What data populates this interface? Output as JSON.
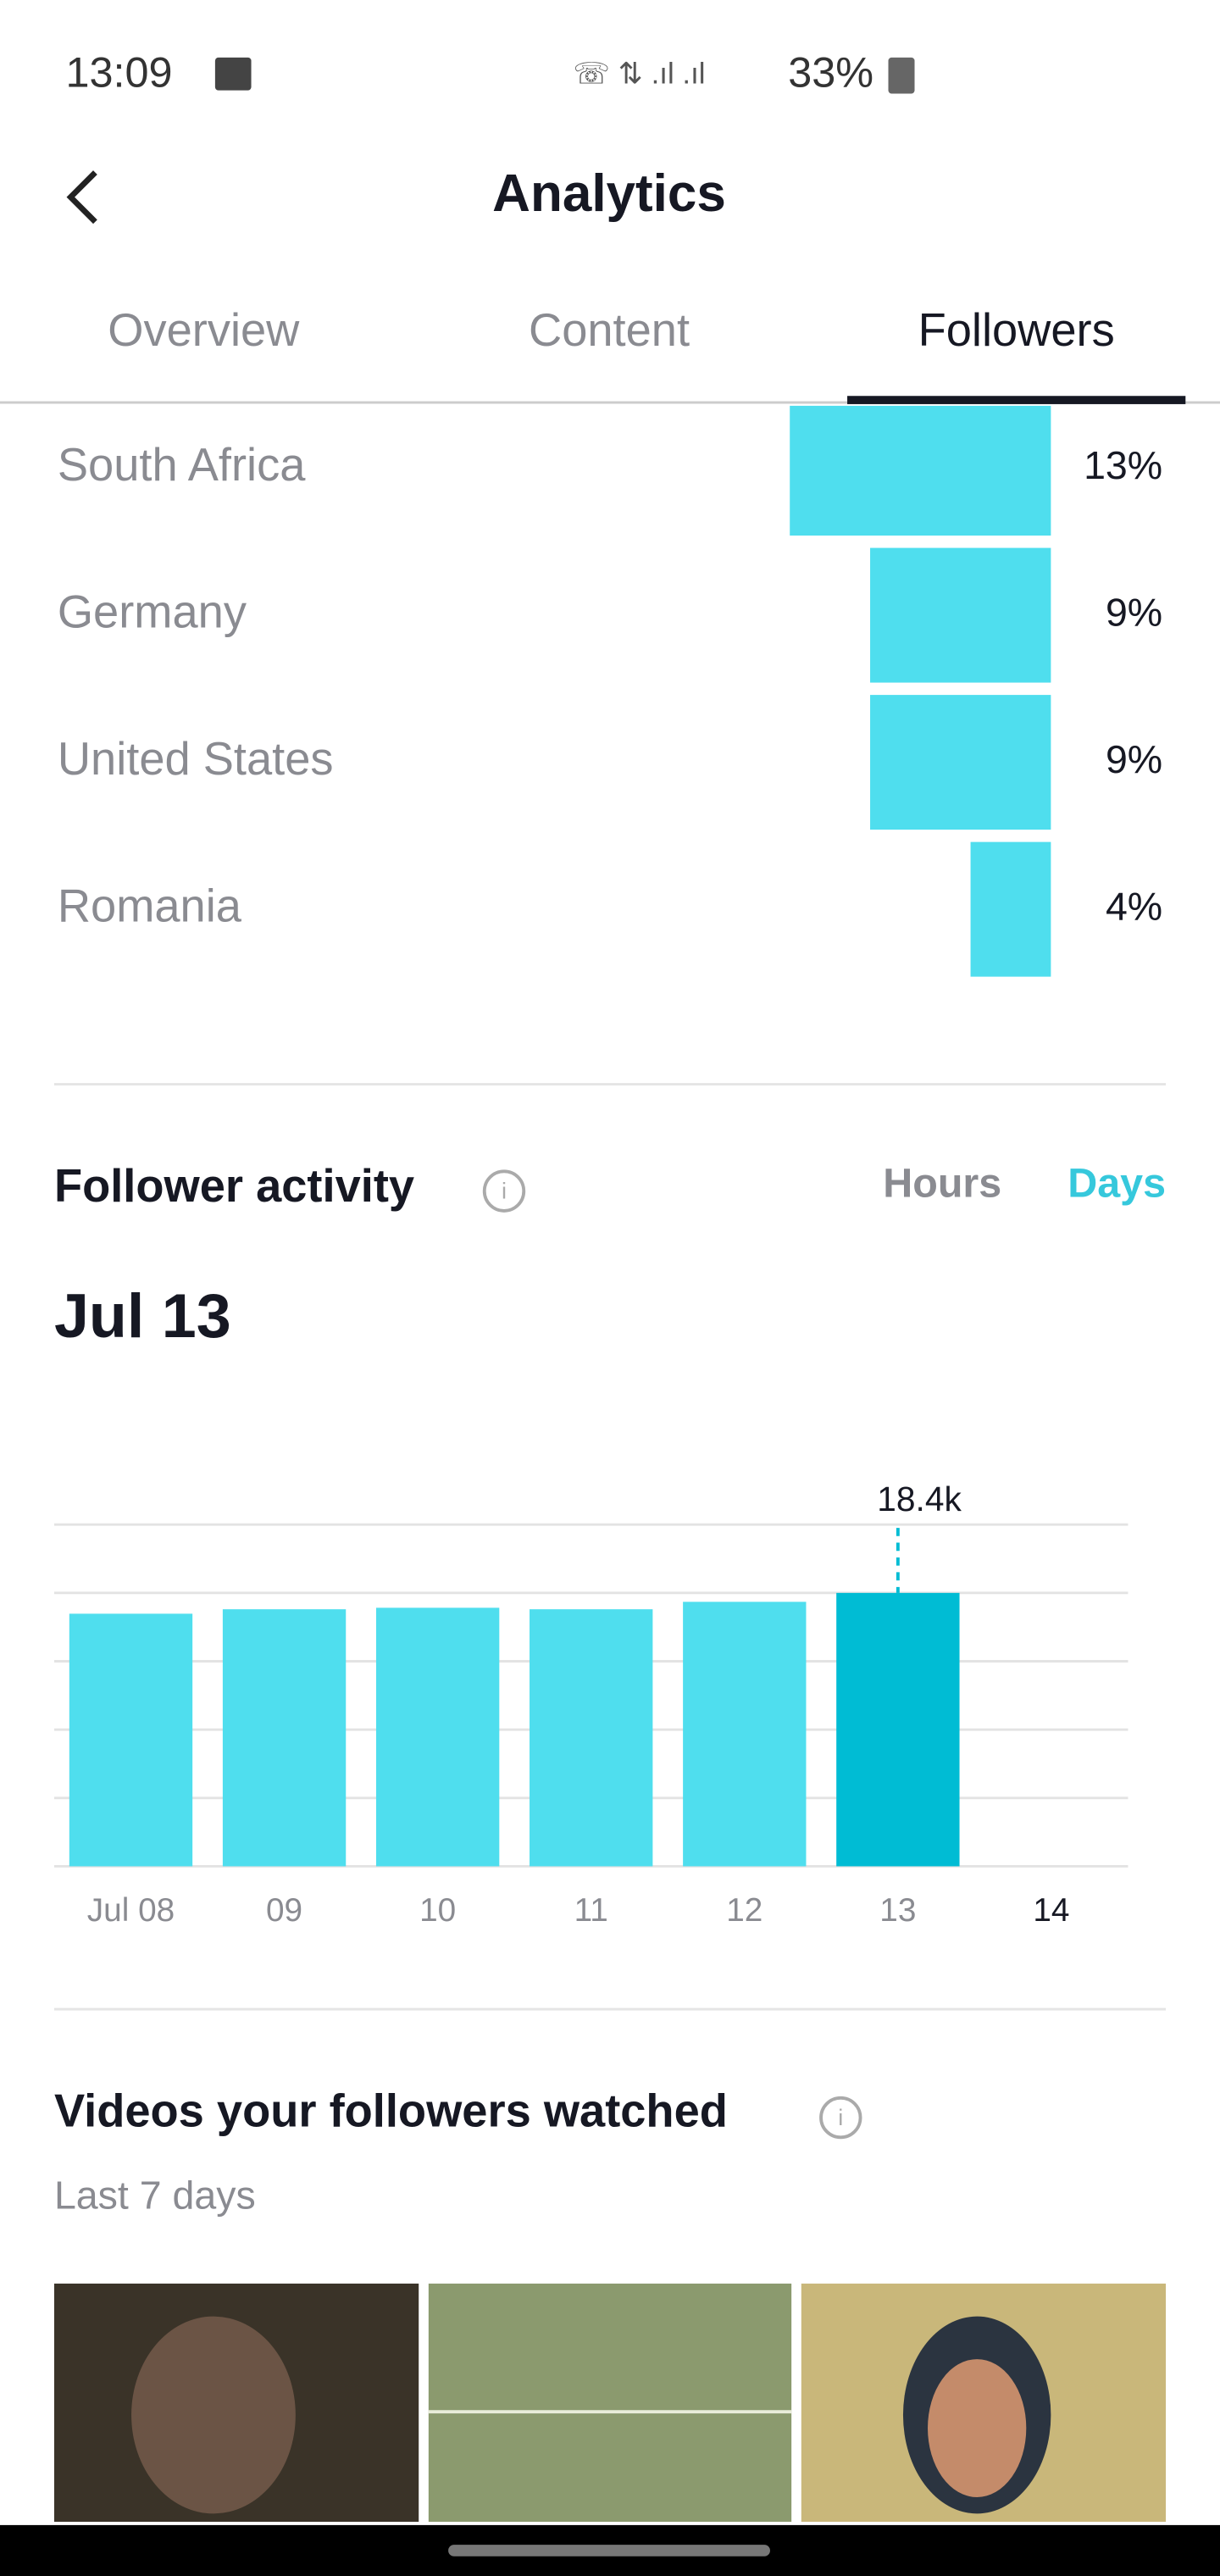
{
  "status_bar": {
    "time": "13:09",
    "battery": "33%"
  },
  "header": {
    "title": "Analytics"
  },
  "tabs": [
    "Overview",
    "Content",
    "Followers"
  ],
  "follower_activity": {
    "title": "Follower activity",
    "toggles": [
      "Hours",
      "Days"
    ],
    "selected_date": "Jul 13"
  },
  "videos": {
    "title": "Videos your followers watched",
    "subtitle": "Last 7 days"
  },
  "chart_data": [
    {
      "type": "hbar",
      "categories": [
        "South Africa",
        "Germany",
        "United States",
        "Romania"
      ],
      "values": [
        13,
        9,
        9,
        4
      ],
      "value_labels": [
        "13%",
        "9%",
        "9%",
        "4%"
      ],
      "color": "#4fdeee"
    },
    {
      "type": "bar",
      "categories": [
        "Jul 08",
        "09",
        "10",
        "11",
        "12",
        "13",
        "14"
      ],
      "values": [
        17.0,
        17.3,
        17.4,
        17.3,
        17.8,
        18.4,
        null
      ],
      "value_labels": [
        null,
        null,
        null,
        null,
        null,
        "18.4k",
        null
      ],
      "color": "#4fdeee",
      "highlight_color": "#00bcd4",
      "ylim": [
        0,
        23
      ],
      "grid": true
    }
  ]
}
